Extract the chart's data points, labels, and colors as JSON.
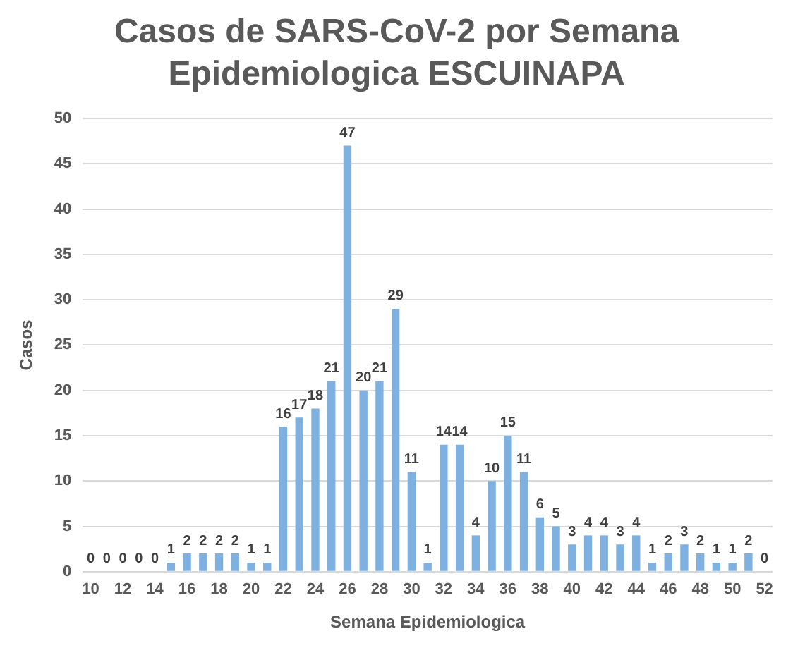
{
  "chart_data": {
    "type": "bar",
    "title": "Casos de SARS-CoV-2 por Semana Epidemiologica ESCUINAPA",
    "xlabel": "Semana Epidemiologica",
    "ylabel": "Casos",
    "categories": [
      "10",
      null,
      "12",
      null,
      "14",
      null,
      "16",
      null,
      "18",
      null,
      "20",
      null,
      "22",
      null,
      "24",
      null,
      "26",
      null,
      "28",
      null,
      "30",
      null,
      "32",
      null,
      "34",
      null,
      "36",
      null,
      "38",
      null,
      "40",
      null,
      "42",
      null,
      "44",
      null,
      "46",
      null,
      "48",
      null,
      "50",
      null,
      "52"
    ],
    "values": [
      0,
      0,
      0,
      0,
      0,
      1,
      2,
      2,
      2,
      2,
      1,
      1,
      16,
      17,
      18,
      21,
      47,
      20,
      21,
      29,
      11,
      1,
      14,
      14,
      4,
      10,
      15,
      11,
      6,
      5,
      3,
      4,
      4,
      3,
      4,
      1,
      2,
      3,
      2,
      1,
      1,
      2,
      0
    ],
    "color": "#7eb0e0",
    "ylim": [
      0,
      50
    ],
    "yticks": [
      0,
      5,
      10,
      15,
      20,
      25,
      30,
      35,
      40,
      45,
      50
    ],
    "grid": "y",
    "legend": false,
    "data_labels": true
  }
}
